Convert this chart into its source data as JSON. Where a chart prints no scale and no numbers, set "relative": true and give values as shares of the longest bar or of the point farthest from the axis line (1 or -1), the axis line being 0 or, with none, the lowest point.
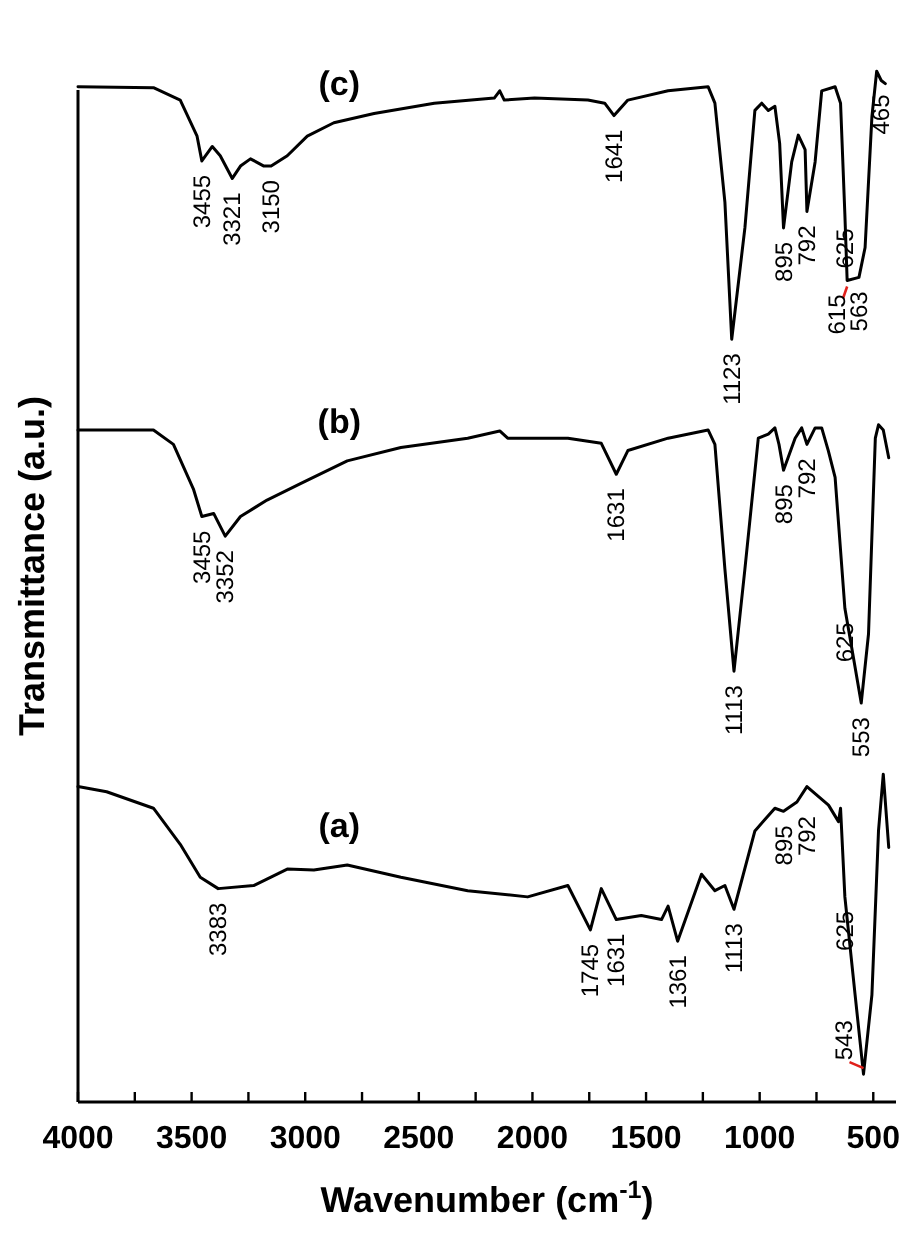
{
  "chart_data": {
    "type": "line",
    "relative": true,
    "xlabel": "Wavenumber (cm$^{-1}$)",
    "ylabel": "Transmittance (a.u.)",
    "xlim": [
      4000,
      400
    ],
    "xticks": [
      4000,
      {
        "value": 3750,
        "label": null
      },
      3500,
      {
        "value": 3250,
        "label": null
      },
      3000,
      {
        "value": 2750,
        "label": null
      },
      2500,
      {
        "value": 2250,
        "label": null
      },
      2000,
      {
        "value": 1750,
        "label": null
      },
      1500,
      {
        "value": 1250,
        "label": null
      },
      1000,
      {
        "value": 750,
        "label": null
      },
      500
    ],
    "tick_labels": "x",
    "grid": false,
    "legend": false,
    "marker": "none",
    "line_style": "solid",
    "series": [
      {
        "name": "(c)",
        "color": "#000000",
        "x": [
          4000,
          3668,
          3550,
          3476,
          3455,
          3409,
          3374,
          3321,
          3285,
          3241,
          3182,
          3150,
          3079,
          2991,
          2874,
          2697,
          2432,
          2168,
          2144,
          2124,
          1991,
          1756,
          1682,
          1641,
          1580,
          1403,
          1227,
          1197,
          1153,
          1123,
          1065,
          1021,
          991,
          962,
          933,
          912,
          895,
          859,
          830,
          800,
          792,
          756,
          727,
          668,
          644,
          625,
          615,
          563,
          536,
          506,
          485,
          465,
          447
        ],
        "values": [
          0.985,
          0.984,
          0.972,
          0.937,
          0.913,
          0.927,
          0.918,
          0.896,
          0.908,
          0.915,
          0.908,
          0.908,
          0.918,
          0.937,
          0.95,
          0.959,
          0.969,
          0.974,
          0.981,
          0.972,
          0.974,
          0.972,
          0.969,
          0.957,
          0.972,
          0.981,
          0.985,
          0.969,
          0.873,
          0.74,
          0.848,
          0.962,
          0.969,
          0.962,
          0.966,
          0.93,
          0.848,
          0.912,
          0.938,
          0.924,
          0.864,
          0.912,
          0.981,
          0.985,
          0.969,
          0.861,
          0.797,
          0.8,
          0.829,
          0.956,
          1.0,
          0.991,
          0.988
        ]
      },
      {
        "name": "(b)",
        "color": "#000000",
        "x": [
          4000,
          3668,
          3580,
          3491,
          3455,
          3403,
          3352,
          3285,
          3168,
          3021,
          2815,
          2579,
          2285,
          2144,
          2109,
          1844,
          1697,
          1631,
          1580,
          1403,
          1227,
          1197,
          1153,
          1113,
          1065,
          1006,
          962,
          933,
          915,
          895,
          844,
          815,
          792,
          756,
          727,
          698,
          668,
          625,
          595,
          553,
          521,
          491,
          477,
          456,
          432
        ],
        "values": [
          0.652,
          0.652,
          0.638,
          0.594,
          0.568,
          0.571,
          0.549,
          0.568,
          0.584,
          0.6,
          0.622,
          0.635,
          0.644,
          0.651,
          0.644,
          0.644,
          0.639,
          0.609,
          0.632,
          0.644,
          0.652,
          0.638,
          0.517,
          0.418,
          0.517,
          0.644,
          0.648,
          0.654,
          0.638,
          0.613,
          0.644,
          0.654,
          0.638,
          0.654,
          0.654,
          0.632,
          0.606,
          0.479,
          0.441,
          0.387,
          0.454,
          0.644,
          0.657,
          0.652,
          0.625
        ]
      },
      {
        "name": "(a)",
        "color": "#000000",
        "x": [
          4000,
          3874,
          3668,
          3550,
          3462,
          3383,
          3227,
          3079,
          2962,
          2815,
          2579,
          2285,
          2021,
          1844,
          1745,
          1697,
          1631,
          1521,
          1432,
          1403,
          1361,
          1256,
          1197,
          1153,
          1113,
          1021,
          933,
          895,
          836,
          792,
          697,
          653,
          644,
          625,
          580,
          543,
          506,
          477,
          456,
          432
        ],
        "values": [
          0.306,
          0.301,
          0.285,
          0.25,
          0.218,
          0.207,
          0.21,
          0.226,
          0.225,
          0.23,
          0.218,
          0.205,
          0.199,
          0.21,
          0.167,
          0.207,
          0.177,
          0.181,
          0.177,
          0.19,
          0.156,
          0.221,
          0.205,
          0.21,
          0.187,
          0.263,
          0.285,
          0.282,
          0.291,
          0.306,
          0.288,
          0.272,
          0.285,
          0.199,
          0.104,
          0.027,
          0.104,
          0.263,
          0.318,
          0.247
        ]
      }
    ],
    "annotations": [
      {
        "text": "3455",
        "x": 3455,
        "y": 0.913
      },
      {
        "text": "3321",
        "x": 3321,
        "y": 0.896
      },
      {
        "text": "3150",
        "x": 3150,
        "y": 0.908
      },
      {
        "text": "1641",
        "x": 1641,
        "y": 0.957
      },
      {
        "text": "1123",
        "x": 1123,
        "y": 0.74
      },
      {
        "text": "895",
        "x": 895,
        "y": 0.848
      },
      {
        "text": "792",
        "x": 792,
        "y": 0.864
      },
      {
        "text": "625",
        "x": 625,
        "y": 0.861
      },
      {
        "text": "615",
        "x": 615,
        "y": 0.797
      },
      {
        "text": "563",
        "x": 563,
        "y": 0.8
      },
      {
        "text": "465",
        "x": 465,
        "y": 0.991
      },
      {
        "text": "3455",
        "x": 3455,
        "y": 0.568
      },
      {
        "text": "3352",
        "x": 3352,
        "y": 0.549
      },
      {
        "text": "1631",
        "x": 1631,
        "y": 0.609
      },
      {
        "text": "1113",
        "x": 1113,
        "y": 0.418
      },
      {
        "text": "895",
        "x": 895,
        "y": 0.613
      },
      {
        "text": "792",
        "x": 792,
        "y": 0.638
      },
      {
        "text": "625",
        "x": 625,
        "y": 0.479
      },
      {
        "text": "553",
        "x": 553,
        "y": 0.387
      },
      {
        "text": "3383",
        "x": 3383,
        "y": 0.207
      },
      {
        "text": "1745",
        "x": 1745,
        "y": 0.167
      },
      {
        "text": "1631",
        "x": 1631,
        "y": 0.177
      },
      {
        "text": "1361",
        "x": 1361,
        "y": 0.156
      },
      {
        "text": "1113",
        "x": 1113,
        "y": 0.187
      },
      {
        "text": "895",
        "x": 895,
        "y": 0.282
      },
      {
        "text": "792",
        "x": 792,
        "y": 0.291
      },
      {
        "text": "625",
        "x": 625,
        "y": 0.199
      },
      {
        "text": "543",
        "x": 543,
        "y": 0.027
      }
    ]
  }
}
